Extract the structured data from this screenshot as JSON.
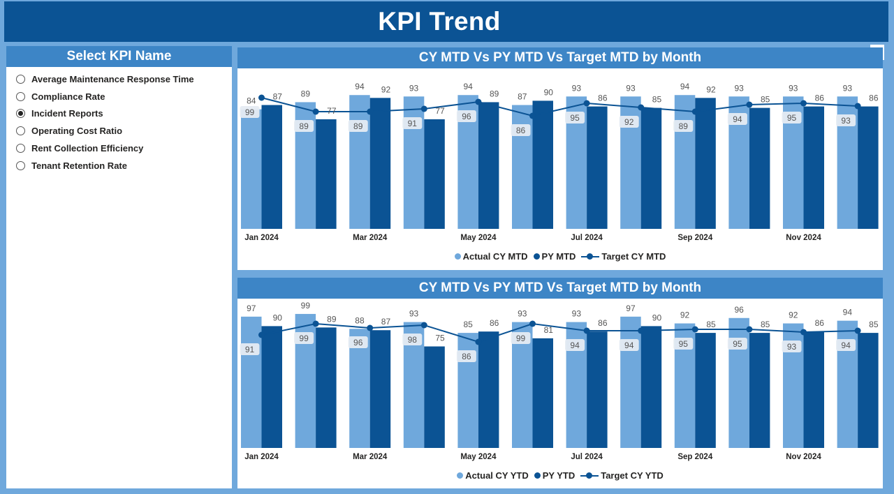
{
  "header": {
    "title": "KPI Trend"
  },
  "slicer": {
    "title": "Select KPI Name",
    "items": [
      {
        "label": "Average Maintenance Response Time",
        "selected": false
      },
      {
        "label": "Compliance Rate",
        "selected": false
      },
      {
        "label": "Incident Reports",
        "selected": true
      },
      {
        "label": "Operating Cost Ratio",
        "selected": false
      },
      {
        "label": "Rent Collection Efficiency",
        "selected": false
      },
      {
        "label": "Tenant Retention Rate",
        "selected": false
      }
    ]
  },
  "colors": {
    "actual": "#6fa8dc",
    "prior": "#0b5394",
    "target": "#0b5394",
    "header": "#0b5394",
    "panel_title": "#3d85c6"
  },
  "chart_data": [
    {
      "type": "bar",
      "title": "CY MTD Vs PY MTD Vs Target MTD by Month",
      "categories": [
        "Jan 2024",
        "Feb 2024",
        "Mar 2024",
        "Apr 2024",
        "May 2024",
        "Jun 2024",
        "Jul 2024",
        "Aug 2024",
        "Sep 2024",
        "Oct 2024",
        "Nov 2024",
        "Dec 2024"
      ],
      "x_tick_labels": [
        "Jan 2024",
        "",
        "Mar 2024",
        "",
        "May 2024",
        "",
        "Jul 2024",
        "",
        "Sep 2024",
        "",
        "Nov 2024",
        ""
      ],
      "series": [
        {
          "name": "Actual CY MTD",
          "type": "bar",
          "values": [
            84,
            89,
            94,
            93,
            94,
            87,
            93,
            93,
            94,
            93,
            93,
            93
          ]
        },
        {
          "name": "PY MTD",
          "type": "bar",
          "values": [
            87,
            77,
            92,
            77,
            89,
            90,
            86,
            85,
            92,
            85,
            86,
            86
          ]
        },
        {
          "name": "Target CY MTD",
          "type": "line",
          "values": [
            99,
            89,
            89,
            91,
            96,
            86,
            95,
            92,
            89,
            94,
            95,
            93
          ]
        }
      ],
      "ylim": [
        0,
        100
      ],
      "legend_position": "bottom"
    },
    {
      "type": "bar",
      "title": "CY MTD Vs PY MTD Vs Target MTD by Month",
      "categories": [
        "Jan 2024",
        "Feb 2024",
        "Mar 2024",
        "Apr 2024",
        "May 2024",
        "Jun 2024",
        "Jul 2024",
        "Aug 2024",
        "Sep 2024",
        "Oct 2024",
        "Nov 2024",
        "Dec 2024"
      ],
      "x_tick_labels": [
        "Jan 2024",
        "",
        "Mar 2024",
        "",
        "May 2024",
        "",
        "Jul 2024",
        "",
        "Sep 2024",
        "",
        "Nov 2024",
        ""
      ],
      "series": [
        {
          "name": "Actual CY YTD",
          "type": "bar",
          "values": [
            97,
            99,
            88,
            93,
            85,
            93,
            93,
            97,
            92,
            96,
            92,
            94
          ]
        },
        {
          "name": "PY YTD",
          "type": "bar",
          "values": [
            90,
            89,
            87,
            75,
            86,
            81,
            86,
            90,
            85,
            85,
            86,
            85
          ]
        },
        {
          "name": "Target CY YTD",
          "type": "line",
          "values": [
            91,
            99,
            96,
            98,
            86,
            99,
            94,
            94,
            95,
            95,
            93,
            94
          ]
        }
      ],
      "ylim": [
        0,
        100
      ],
      "legend_position": "bottom"
    }
  ]
}
